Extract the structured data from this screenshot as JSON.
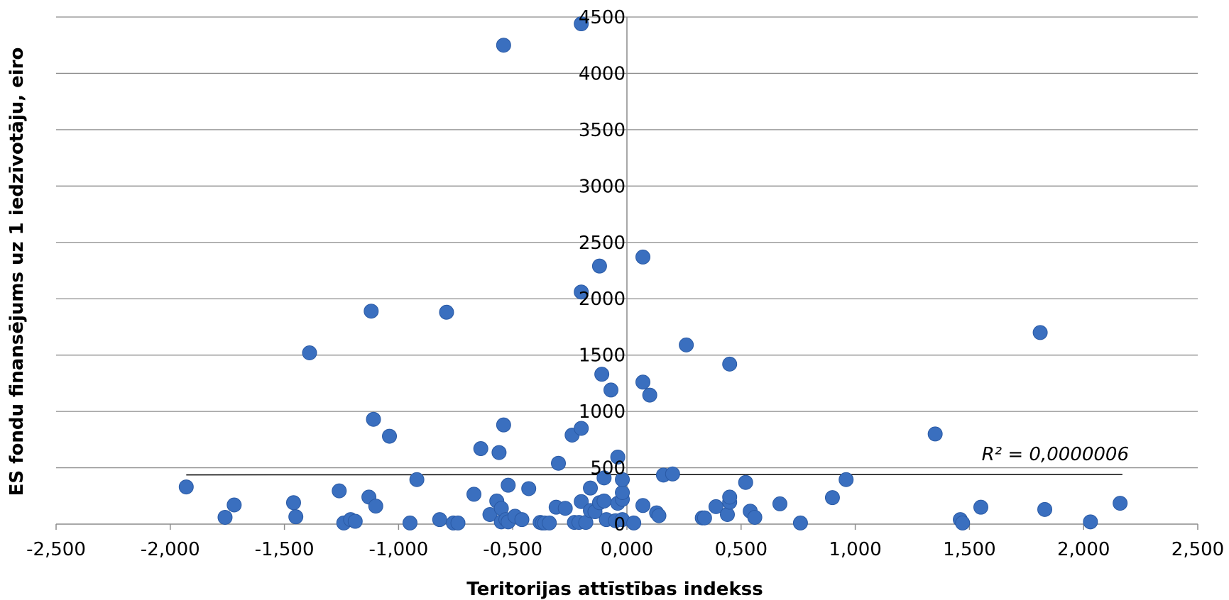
{
  "chart_data": {
    "type": "scatter",
    "xlabel": "Teritorijas attīstības indekss",
    "ylabel": "ES fondu finansējums uz 1 iedzīvotāju, eiro",
    "xlim": [
      -2.5,
      2.5
    ],
    "ylim": [
      0,
      4500
    ],
    "x_ticks": [
      "-2,500",
      "-2,000",
      "-1,500",
      "-1,000",
      "-0,500",
      "0,000",
      "0,500",
      "1,000",
      "1,500",
      "2,000",
      "2,500"
    ],
    "y_ticks": [
      "0",
      "500",
      "1000",
      "1500",
      "2000",
      "2500",
      "3000",
      "3500",
      "4000",
      "4500"
    ],
    "grid": "horizontal",
    "marker_color": "#3a6fbf",
    "annotation": "R² = 0,0000006",
    "trendline": {
      "x": [
        -1.93,
        2.17
      ],
      "y": [
        437,
        441
      ]
    },
    "points": [
      [
        -1.93,
        330
      ],
      [
        -1.76,
        60
      ],
      [
        -1.72,
        170
      ],
      [
        -1.46,
        190
      ],
      [
        -1.45,
        65
      ],
      [
        -1.39,
        1520
      ],
      [
        -1.26,
        295
      ],
      [
        -1.24,
        10
      ],
      [
        -1.21,
        40
      ],
      [
        -1.19,
        25
      ],
      [
        -1.13,
        240
      ],
      [
        -1.12,
        1890
      ],
      [
        -1.11,
        930
      ],
      [
        -1.1,
        160
      ],
      [
        -1.04,
        780
      ],
      [
        -0.95,
        10
      ],
      [
        -0.92,
        395
      ],
      [
        -0.82,
        40
      ],
      [
        -0.79,
        1880
      ],
      [
        -0.76,
        10
      ],
      [
        -0.74,
        10
      ],
      [
        -0.67,
        265
      ],
      [
        -0.64,
        670
      ],
      [
        -0.6,
        85
      ],
      [
        -0.57,
        205
      ],
      [
        -0.56,
        635
      ],
      [
        -0.55,
        20
      ],
      [
        -0.55,
        140
      ],
      [
        -0.54,
        4250
      ],
      [
        -0.54,
        880
      ],
      [
        -0.53,
        40
      ],
      [
        -0.52,
        20
      ],
      [
        -0.52,
        345
      ],
      [
        -0.49,
        70
      ],
      [
        -0.46,
        40
      ],
      [
        -0.43,
        315
      ],
      [
        -0.38,
        15
      ],
      [
        -0.37,
        10
      ],
      [
        -0.36,
        10
      ],
      [
        -0.34,
        10
      ],
      [
        -0.31,
        150
      ],
      [
        -0.3,
        540
      ],
      [
        -0.27,
        140
      ],
      [
        -0.24,
        790
      ],
      [
        -0.23,
        15
      ],
      [
        -0.21,
        15
      ],
      [
        -0.2,
        200
      ],
      [
        -0.2,
        2060
      ],
      [
        -0.2,
        850
      ],
      [
        -0.2,
        4440
      ],
      [
        -0.18,
        15
      ],
      [
        -0.16,
        320
      ],
      [
        -0.16,
        120
      ],
      [
        -0.14,
        110
      ],
      [
        -0.12,
        190
      ],
      [
        -0.12,
        2290
      ],
      [
        -0.11,
        1330
      ],
      [
        -0.1,
        205
      ],
      [
        -0.1,
        410
      ],
      [
        -0.09,
        40
      ],
      [
        -0.07,
        1190
      ],
      [
        -0.05,
        30
      ],
      [
        -0.04,
        185
      ],
      [
        -0.04,
        595
      ],
      [
        -0.02,
        220
      ],
      [
        -0.02,
        280
      ],
      [
        -0.02,
        395
      ],
      [
        -0.02,
        40
      ],
      [
        0.03,
        10
      ],
      [
        0.07,
        165
      ],
      [
        0.07,
        1260
      ],
      [
        0.07,
        2370
      ],
      [
        0.1,
        1145
      ],
      [
        0.13,
        100
      ],
      [
        0.14,
        75
      ],
      [
        0.16,
        435
      ],
      [
        0.2,
        445
      ],
      [
        0.26,
        1590
      ],
      [
        0.33,
        55
      ],
      [
        0.34,
        55
      ],
      [
        0.39,
        155
      ],
      [
        0.44,
        85
      ],
      [
        0.45,
        195
      ],
      [
        0.45,
        240
      ],
      [
        0.45,
        1420
      ],
      [
        0.52,
        370
      ],
      [
        0.54,
        115
      ],
      [
        0.56,
        60
      ],
      [
        0.67,
        180
      ],
      [
        0.76,
        10
      ],
      [
        0.9,
        235
      ],
      [
        0.96,
        395
      ],
      [
        1.35,
        800
      ],
      [
        1.46,
        40
      ],
      [
        1.47,
        10
      ],
      [
        1.55,
        150
      ],
      [
        1.81,
        1700
      ],
      [
        1.83,
        130
      ],
      [
        2.03,
        20
      ],
      [
        2.16,
        185
      ]
    ]
  }
}
